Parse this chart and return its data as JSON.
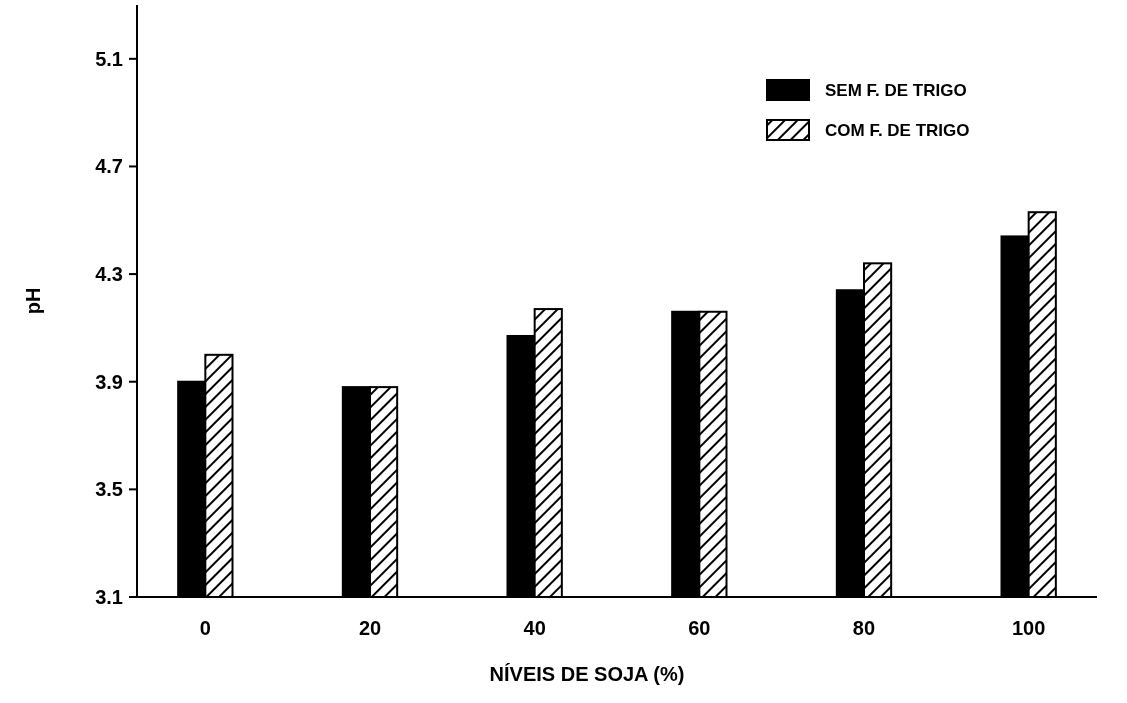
{
  "chart_data": {
    "type": "bar",
    "xlabel": "NÍVEIS DE SOJA (%)",
    "ylabel": "pH",
    "categories": [
      "0",
      "20",
      "40",
      "60",
      "80",
      "100"
    ],
    "series": [
      {
        "name": "SEM F. DE TRIGO",
        "color": "#000000",
        "values": [
          3.9,
          3.88,
          4.07,
          4.16,
          4.24,
          4.44
        ]
      },
      {
        "name": "COM F. DE TRIGO",
        "color": "#000000",
        "values": [
          4.0,
          3.88,
          4.17,
          4.16,
          4.34,
          4.53
        ]
      }
    ],
    "ylim": [
      3.1,
      5.3
    ],
    "yticks": [
      3.1,
      3.5,
      3.9,
      4.3,
      4.7,
      5.1
    ],
    "legend": "top right"
  }
}
